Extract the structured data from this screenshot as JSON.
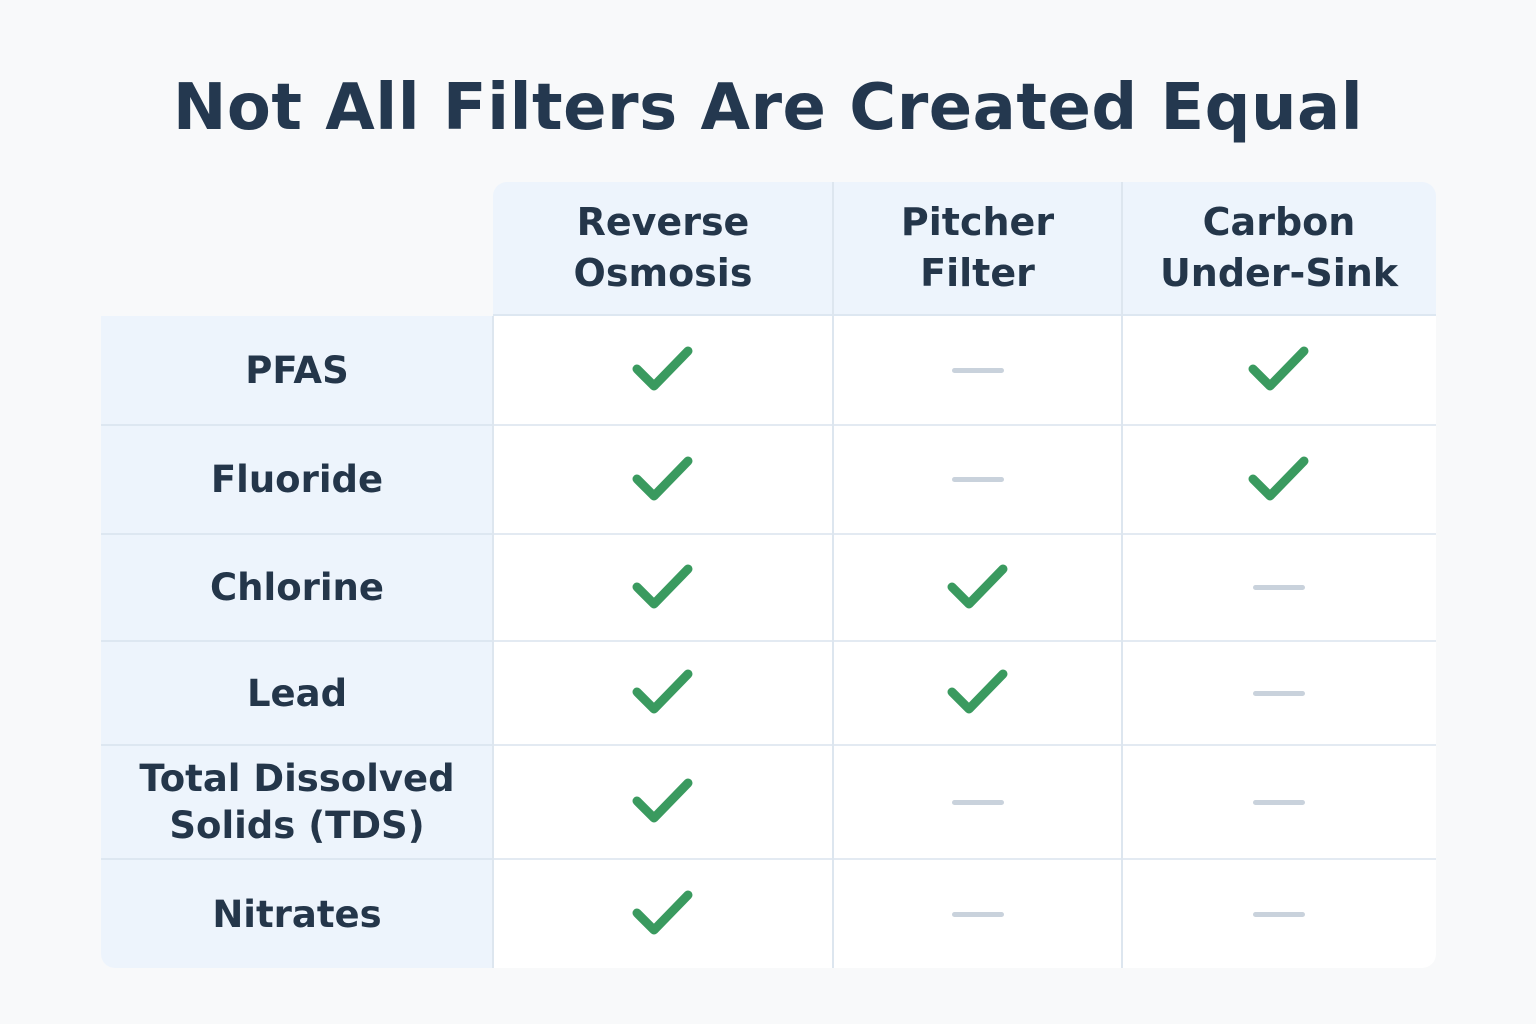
{
  "page": {
    "title": "Not All Filters Are Created Equal"
  },
  "chart_data": {
    "type": "table",
    "title": "Not All Filters Are Created Equal",
    "columns": [
      "Reverse\nOsmosis",
      "Pitcher\nFilter",
      "Carbon\nUnder-Sink"
    ],
    "rows": [
      {
        "label": "PFAS",
        "values": [
          true,
          false,
          true
        ]
      },
      {
        "label": "Fluoride",
        "values": [
          true,
          false,
          true
        ]
      },
      {
        "label": "Chlorine",
        "values": [
          true,
          true,
          false
        ]
      },
      {
        "label": "Lead",
        "values": [
          true,
          true,
          false
        ]
      },
      {
        "label": "Total Dissolved\nSolids (TDS)",
        "values": [
          true,
          false,
          false
        ]
      },
      {
        "label": "Nitrates",
        "values": [
          true,
          false,
          false
        ]
      }
    ],
    "legend": {
      "true": "check-icon",
      "false": "dash-icon"
    },
    "colors": {
      "check": "#3a9a5f",
      "dash": "#c9d2dc",
      "header_bg": "#edf4fc",
      "cell_bg": "#ffffff",
      "text": "#24364a"
    }
  }
}
